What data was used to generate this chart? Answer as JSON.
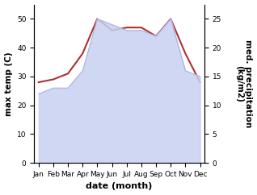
{
  "months": [
    "Jan",
    "Feb",
    "Mar",
    "Apr",
    "May",
    "Jun",
    "Jul",
    "Aug",
    "Sep",
    "Oct",
    "Nov",
    "Dec"
  ],
  "temp": [
    28,
    29,
    31,
    38,
    50,
    46,
    47,
    47,
    44,
    50,
    38,
    28
  ],
  "precip": [
    12,
    13,
    13,
    16,
    25,
    24,
    23,
    23,
    22,
    25,
    16,
    15
  ],
  "temp_color": "#b03030",
  "precip_fill_color": "#c8d0f0",
  "precip_edge_color": "#aab4e8",
  "ylabel_left": "max temp (C)",
  "ylabel_right": "med. precipitation\n(kg/m2)",
  "xlabel": "date (month)",
  "ylim_left": [
    0,
    55
  ],
  "ylim_right": [
    0,
    27.5
  ],
  "yticks_left": [
    0,
    10,
    20,
    30,
    40,
    50
  ],
  "yticks_right": [
    0,
    5,
    10,
    15,
    20,
    25
  ],
  "background_color": "#ffffff",
  "axis_fontsize": 7.5,
  "tick_fontsize": 6.5,
  "xlabel_fontsize": 8
}
